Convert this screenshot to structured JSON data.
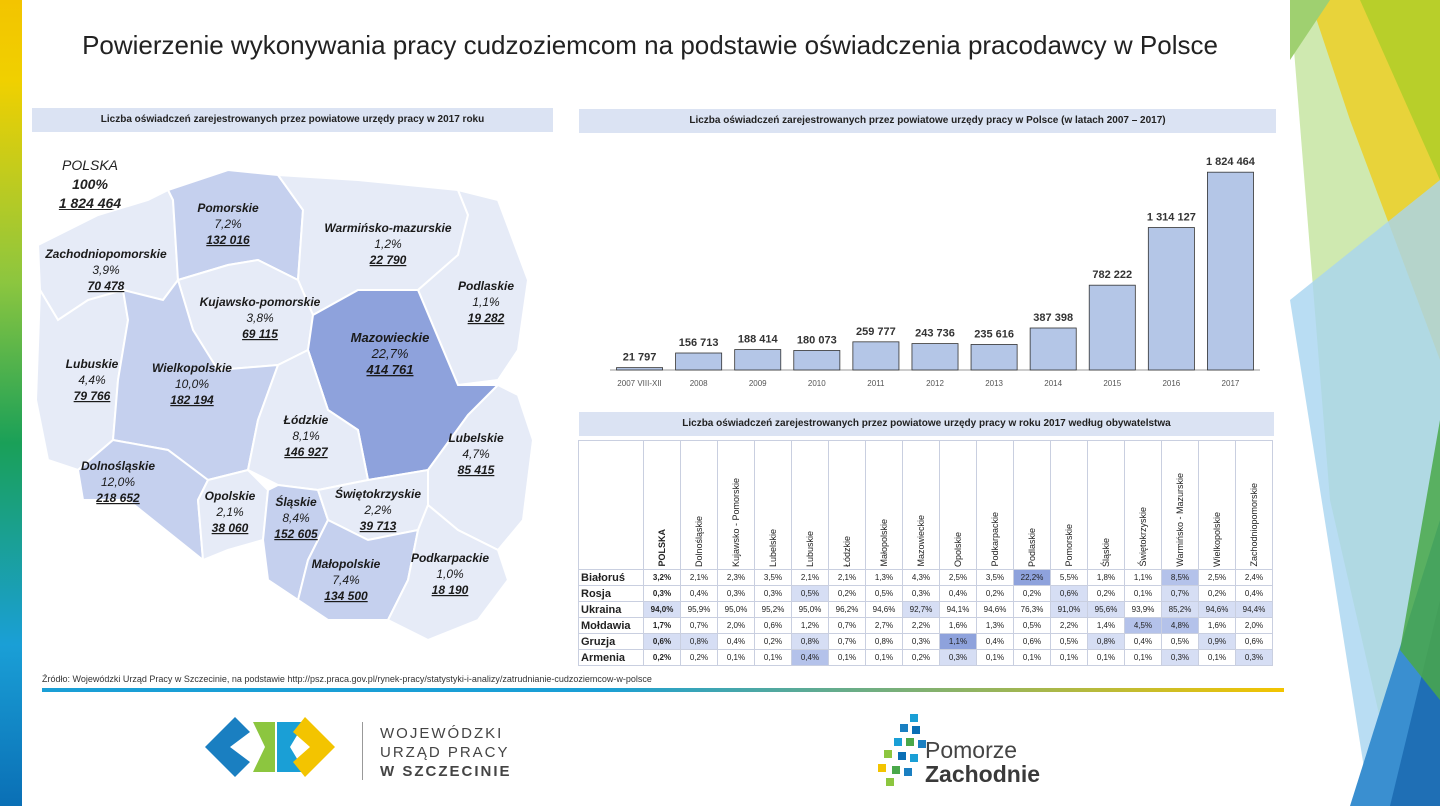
{
  "title": "Powierzenie wykonywania pracy cudzoziemcom na podstawie oświadczenia pracodawcy w Polsce",
  "map_panel": {
    "header": "Liczba oświadczeń zarejestrowanych przez powiatowe urzędy pracy w 2017 roku",
    "total": {
      "name": "POLSKA",
      "pct": "100%",
      "value": "1 824 464"
    },
    "regions": [
      {
        "name": "Pomorskie",
        "pct": "7,2%",
        "value": "132 016"
      },
      {
        "name": "Warmińsko-mazurskie",
        "pct": "1,2%",
        "value": "22 790"
      },
      {
        "name": "Zachodniopomorskie",
        "pct": "3,9%",
        "value": "70 478"
      },
      {
        "name": "Podlaskie",
        "pct": "1,1%",
        "value": "19 282"
      },
      {
        "name": "Kujawsko-pomorskie",
        "pct": "3,8%",
        "value": "69 115"
      },
      {
        "name": "Mazowieckie",
        "pct": "22,7%",
        "value": "414 761"
      },
      {
        "name": "Lubuskie",
        "pct": "4,4%",
        "value": "79 766"
      },
      {
        "name": "Wielkopolskie",
        "pct": "10,0%",
        "value": "182 194"
      },
      {
        "name": "Łódzkie",
        "pct": "8,1%",
        "value": "146 927"
      },
      {
        "name": "Lubelskie",
        "pct": "4,7%",
        "value": "85 415"
      },
      {
        "name": "Dolnośląskie",
        "pct": "12,0%",
        "value": "218 652"
      },
      {
        "name": "Opolskie",
        "pct": "2,1%",
        "value": "38 060"
      },
      {
        "name": "Śląskie",
        "pct": "8,4%",
        "value": "152 605"
      },
      {
        "name": "Świętokrzyskie",
        "pct": "2,2%",
        "value": "39 713"
      },
      {
        "name": "Małopolskie",
        "pct": "7,4%",
        "value": "134 500"
      },
      {
        "name": "Podkarpackie",
        "pct": "1,0%",
        "value": "18 190"
      }
    ]
  },
  "bar_panel": {
    "header": "Liczba oświadczeń zarejestrowanych przez powiatowe urzędy pracy w Polsce  (w latach 2007 – 2017)"
  },
  "chart_data": {
    "type": "bar",
    "categories": [
      "2007 VIII-XII",
      "2008",
      "2009",
      "2010",
      "2011",
      "2012",
      "2013",
      "2014",
      "2015",
      "2016",
      "2017"
    ],
    "values": [
      21797,
      156713,
      188414,
      180073,
      259777,
      243736,
      235616,
      387398,
      782222,
      1314127,
      1824464
    ],
    "value_labels": [
      "21 797",
      "156 713",
      "188 414",
      "180 073",
      "259 777",
      "243 736",
      "235 616",
      "387 398",
      "782 222",
      "1 314 127",
      "1 824 464"
    ],
    "ylim": [
      0,
      1900000
    ],
    "grid": false
  },
  "table_panel": {
    "header": "Liczba oświadczeń zarejestrowanych przez powiatowe urzędy pracy w roku 2017 według obywatelstwa",
    "columns": [
      "POLSKA",
      "Dolnośląskie",
      "Kujawsko - Pomorskie",
      "Lubelskie",
      "Lubuskie",
      "Łódzkie",
      "Małopolskie",
      "Mazowieckie",
      "Opolskie",
      "Podkarpackie",
      "Podlaskie",
      "Pomorskie",
      "Śląskie",
      "Świętokrzyskie",
      "Warmińsko - Mazurskie",
      "Wielkopolskie",
      "Zachodniopomorskie"
    ],
    "rows": [
      {
        "label": "Białoruś",
        "cells": [
          "3,2%",
          "2,1%",
          "2,3%",
          "3,5%",
          "2,1%",
          "2,1%",
          "1,3%",
          "4,3%",
          "2,5%",
          "3,5%",
          "22,2%",
          "5,5%",
          "1,8%",
          "1,1%",
          "8,5%",
          "2,5%",
          "2,4%"
        ]
      },
      {
        "label": "Rosja",
        "cells": [
          "0,3%",
          "0,4%",
          "0,3%",
          "0,3%",
          "0,5%",
          "0,2%",
          "0,5%",
          "0,3%",
          "0,4%",
          "0,2%",
          "0,2%",
          "0,6%",
          "0,2%",
          "0,1%",
          "0,7%",
          "0,2%",
          "0,4%"
        ]
      },
      {
        "label": "Ukraina",
        "cells": [
          "94,0%",
          "95,9%",
          "95,0%",
          "95,2%",
          "95,0%",
          "96,2%",
          "94,6%",
          "92,7%",
          "94,1%",
          "94,6%",
          "76,3%",
          "91,0%",
          "95,6%",
          "93,9%",
          "85,2%",
          "94,6%",
          "94,4%"
        ]
      },
      {
        "label": "Mołdawia",
        "cells": [
          "1,7%",
          "0,7%",
          "2,0%",
          "0,6%",
          "1,2%",
          "0,7%",
          "2,7%",
          "2,2%",
          "1,6%",
          "1,3%",
          "0,5%",
          "2,2%",
          "1,4%",
          "4,5%",
          "4,8%",
          "1,6%",
          "2,0%"
        ]
      },
      {
        "label": "Gruzja",
        "cells": [
          "0,6%",
          "0,8%",
          "0,4%",
          "0,2%",
          "0,8%",
          "0,7%",
          "0,8%",
          "0,3%",
          "1,1%",
          "0,4%",
          "0,6%",
          "0,5%",
          "0,8%",
          "0,4%",
          "0,5%",
          "0,9%",
          "0,6%"
        ]
      },
      {
        "label": "Armenia",
        "cells": [
          "0,2%",
          "0,2%",
          "0,1%",
          "0,1%",
          "0,4%",
          "0,1%",
          "0,1%",
          "0,2%",
          "0,3%",
          "0,1%",
          "0,1%",
          "0,1%",
          "0,1%",
          "0,1%",
          "0,3%",
          "0,1%",
          "0,3%"
        ]
      }
    ],
    "highlight_colors": {
      "max": "#8ea2dc",
      "high": "#b4c2ea",
      "mid": "#d6def4"
    }
  },
  "source": "Źródło: Wojewódzki Urząd Pracy w Szczecinie, na podstawie http://psz.praca.gov.pl/rynek-pracy/statystyki-i-analizy/zatrudnianie-cudzoziemcow-w-polsce",
  "logos": {
    "wup": {
      "line1": "WOJEWÓDZKI",
      "line2": "URZĄD PRACY",
      "line3": "W  SZCZECINIE"
    },
    "pz": {
      "line1": "Pomorze",
      "line2": "Zachodnie"
    }
  },
  "colors": {
    "bar_fill": "#b4c6e7",
    "bar_stroke": "#333333",
    "header_bg": "#dbe3f3",
    "map_light": "#e6ebf7",
    "map_mid": "#c5d0ee",
    "map_dark": "#8ea2dc"
  }
}
